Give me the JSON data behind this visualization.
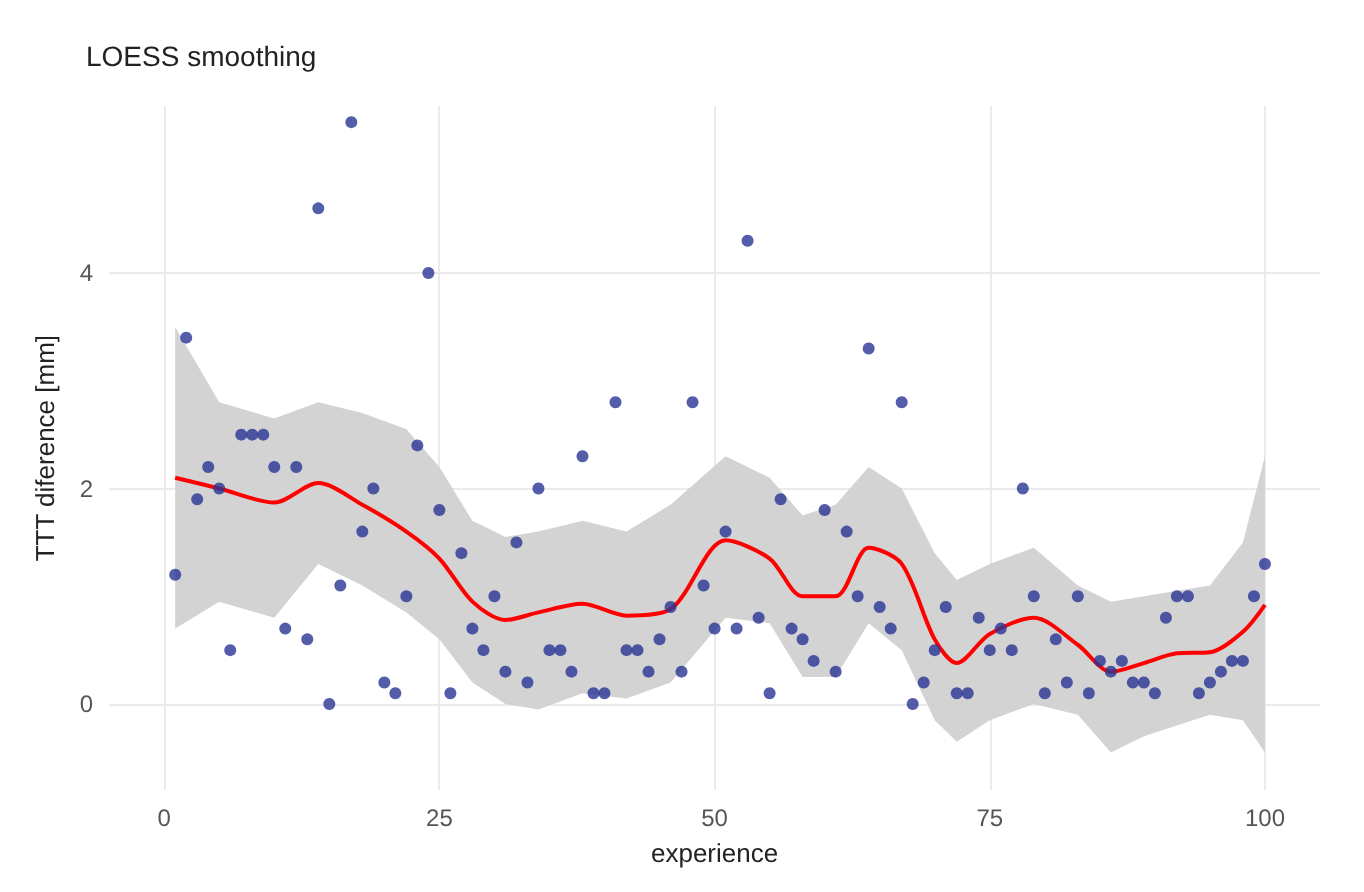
{
  "chart_data": {
    "type": "scatter",
    "title": "LOESS smoothing",
    "xlabel": "experience",
    "ylabel": "TTT diference [mm]",
    "xlim": [
      -5,
      105
    ],
    "ylim": [
      -0.8,
      5.55
    ],
    "xticks": [
      0,
      25,
      50,
      75,
      100
    ],
    "yticks": [
      0,
      2,
      4
    ],
    "grid": true,
    "series": [
      {
        "color": "#283593",
        "marker": "circle",
        "x": [
          1,
          2,
          3,
          4,
          5,
          6,
          7,
          8,
          9,
          10,
          11,
          12,
          13,
          14,
          15,
          16,
          17,
          18,
          19,
          20,
          21,
          22,
          23,
          24,
          25,
          26,
          27,
          28,
          29,
          30,
          31,
          32,
          33,
          34,
          35,
          36,
          37,
          38,
          39,
          40,
          41,
          42,
          43,
          44,
          45,
          46,
          47,
          48,
          49,
          50,
          51,
          52,
          53,
          54,
          55,
          56,
          57,
          58,
          59,
          60,
          61,
          62,
          63,
          64,
          65,
          66,
          67,
          68,
          69,
          70,
          71,
          72,
          73,
          74,
          75,
          76,
          77,
          78,
          79,
          80,
          81,
          82,
          83,
          84,
          85,
          86,
          87,
          88,
          89,
          90,
          91,
          92,
          93,
          94,
          95,
          96,
          97,
          98,
          99,
          100
        ],
        "values": [
          1.2,
          3.4,
          1.9,
          2.2,
          2.0,
          0.5,
          2.5,
          2.5,
          2.5,
          2.2,
          0.7,
          2.2,
          0.6,
          4.6,
          0.0,
          1.1,
          5.4,
          1.6,
          2.0,
          0.2,
          0.1,
          1.0,
          2.4,
          4.0,
          1.8,
          0.1,
          1.4,
          0.7,
          0.5,
          1.0,
          0.3,
          1.5,
          0.2,
          2.0,
          0.5,
          0.5,
          0.3,
          2.3,
          0.1,
          0.1,
          2.8,
          0.5,
          0.5,
          0.3,
          0.6,
          0.9,
          0.3,
          2.8,
          1.1,
          0.7,
          1.6,
          0.7,
          4.3,
          0.8,
          0.1,
          1.9,
          0.7,
          0.6,
          0.4,
          1.8,
          0.3,
          1.6,
          1.0,
          3.3,
          0.9,
          0.7,
          2.8,
          0.0,
          0.2,
          0.5,
          0.9,
          0.1,
          0.1,
          0.8,
          0.5,
          0.7,
          0.5,
          2.0,
          1.0,
          0.1,
          0.6,
          0.2,
          1.0,
          0.1,
          0.4,
          0.3,
          0.4,
          0.2,
          0.2,
          0.1,
          0.8,
          1.0,
          1.0,
          0.1,
          0.2,
          0.3,
          0.4,
          0.4,
          1.0,
          1.3
        ]
      },
      {
        "type": "line",
        "color": "#ff0000",
        "x": [
          1,
          5,
          10,
          14,
          18,
          22,
          25,
          28,
          31,
          34,
          38,
          42,
          46,
          51,
          55,
          58,
          61,
          64,
          67,
          70,
          72,
          75,
          79,
          83,
          86,
          89,
          92,
          95,
          98,
          100
        ],
        "values": [
          2.1,
          2.0,
          1.87,
          2.05,
          1.85,
          1.6,
          1.35,
          0.95,
          0.78,
          0.85,
          0.93,
          0.82,
          0.88,
          1.52,
          1.35,
          1.0,
          1.0,
          1.45,
          1.3,
          0.6,
          0.38,
          0.65,
          0.8,
          0.55,
          0.3,
          0.38,
          0.47,
          0.48,
          0.67,
          0.92
        ],
        "lower": [
          0.7,
          0.95,
          0.8,
          1.3,
          1.1,
          0.85,
          0.6,
          0.2,
          0.0,
          -0.05,
          0.1,
          0.05,
          0.2,
          0.8,
          0.75,
          0.25,
          0.25,
          0.75,
          0.5,
          -0.15,
          -0.35,
          -0.15,
          0.0,
          -0.1,
          -0.45,
          -0.3,
          -0.2,
          -0.1,
          -0.15,
          -0.45
        ],
        "upper": [
          3.5,
          2.8,
          2.65,
          2.8,
          2.7,
          2.55,
          2.2,
          1.7,
          1.55,
          1.6,
          1.7,
          1.6,
          1.85,
          2.3,
          2.1,
          1.75,
          1.85,
          2.2,
          2.0,
          1.4,
          1.15,
          1.3,
          1.45,
          1.1,
          0.95,
          1.0,
          1.05,
          1.1,
          1.5,
          2.3
        ]
      }
    ]
  }
}
